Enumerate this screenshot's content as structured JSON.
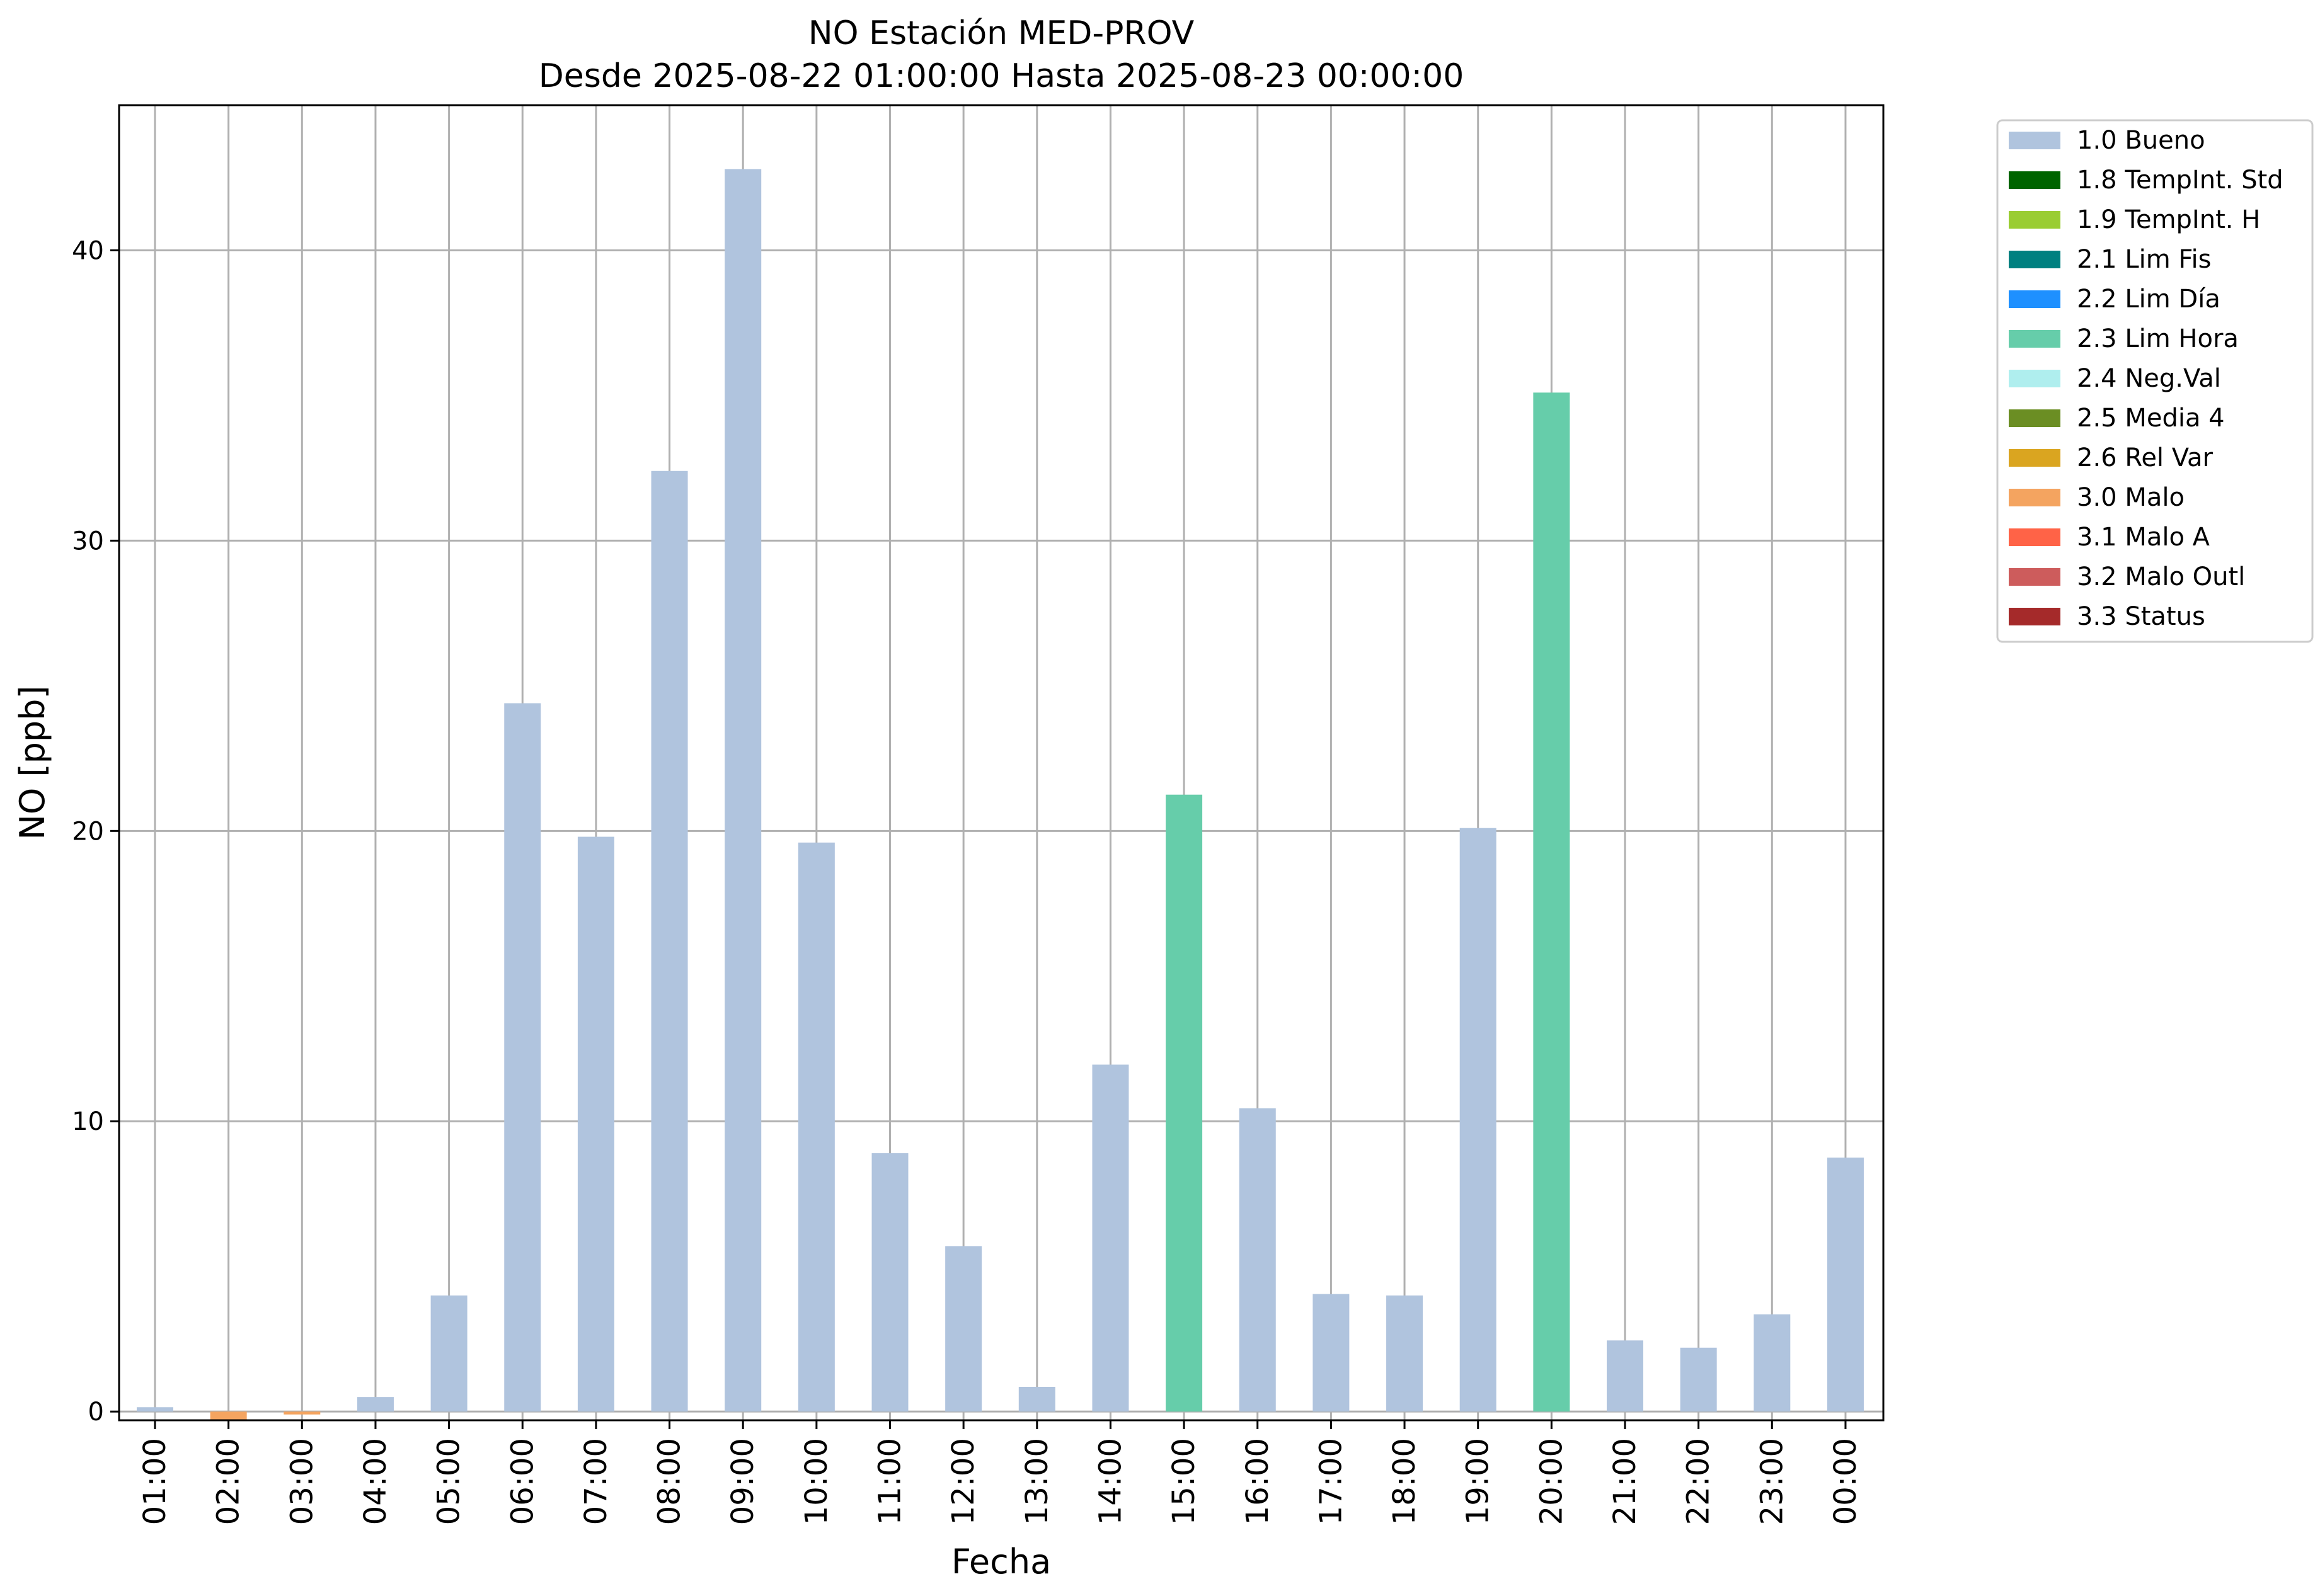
{
  "chart_data": {
    "type": "bar",
    "title": "NO Estación MED-PROV",
    "subtitle": "Desde 2025-08-22 01:00:00 Hasta 2025-08-23 00:00:00",
    "xlabel": "Fecha",
    "ylabel": "NO [ppb]",
    "ylim": [
      -0.3,
      45
    ],
    "yticks": [
      0,
      10,
      20,
      30,
      40
    ],
    "grid": true,
    "legend_position": "outside-top-right",
    "categories": [
      "01:00",
      "02:00",
      "03:00",
      "04:00",
      "05:00",
      "06:00",
      "07:00",
      "08:00",
      "09:00",
      "10:00",
      "11:00",
      "12:00",
      "13:00",
      "14:00",
      "15:00",
      "16:00",
      "17:00",
      "18:00",
      "19:00",
      "20:00",
      "21:00",
      "22:00",
      "23:00",
      "00:00"
    ],
    "values": [
      0.15,
      -0.3,
      -0.1,
      0.5,
      4.0,
      24.4,
      19.8,
      32.4,
      42.8,
      19.6,
      8.9,
      5.7,
      0.85,
      11.95,
      21.25,
      10.45,
      4.05,
      4.0,
      20.1,
      35.1,
      2.45,
      2.2,
      3.35,
      8.75
    ],
    "flags": [
      "1.0",
      "3.0",
      "3.0",
      "1.0",
      "1.0",
      "1.0",
      "1.0",
      "1.0",
      "1.0",
      "1.0",
      "1.0",
      "1.0",
      "1.0",
      "1.0",
      "2.3",
      "1.0",
      "1.0",
      "1.0",
      "1.0",
      "2.3",
      "1.0",
      "1.0",
      "1.0",
      "1.0"
    ],
    "legend": [
      {
        "code": "1.0",
        "label": "1.0 Bueno",
        "color": "#b0c4de"
      },
      {
        "code": "1.8",
        "label": "1.8 TempInt. Std",
        "color": "#006400"
      },
      {
        "code": "1.9",
        "label": "1.9 TempInt. H",
        "color": "#9acd32"
      },
      {
        "code": "2.1",
        "label": "2.1 Lim Fis",
        "color": "#008080"
      },
      {
        "code": "2.2",
        "label": "2.2 Lim Día",
        "color": "#1e90ff"
      },
      {
        "code": "2.3",
        "label": "2.3 Lim Hora",
        "color": "#66cdaa"
      },
      {
        "code": "2.4",
        "label": "2.4 Neg.Val",
        "color": "#afeeee"
      },
      {
        "code": "2.5",
        "label": "2.5 Media 4",
        "color": "#6b8e23"
      },
      {
        "code": "2.6",
        "label": "2.6 Rel Var",
        "color": "#daa520"
      },
      {
        "code": "3.0",
        "label": "3.0 Malo",
        "color": "#f4a460"
      },
      {
        "code": "3.1",
        "label": "3.1 Malo A",
        "color": "#ff6347"
      },
      {
        "code": "3.2",
        "label": "3.2 Malo Outl",
        "color": "#cd5c5c"
      },
      {
        "code": "3.3",
        "label": "3.3 Status",
        "color": "#a52a2a"
      }
    ]
  }
}
